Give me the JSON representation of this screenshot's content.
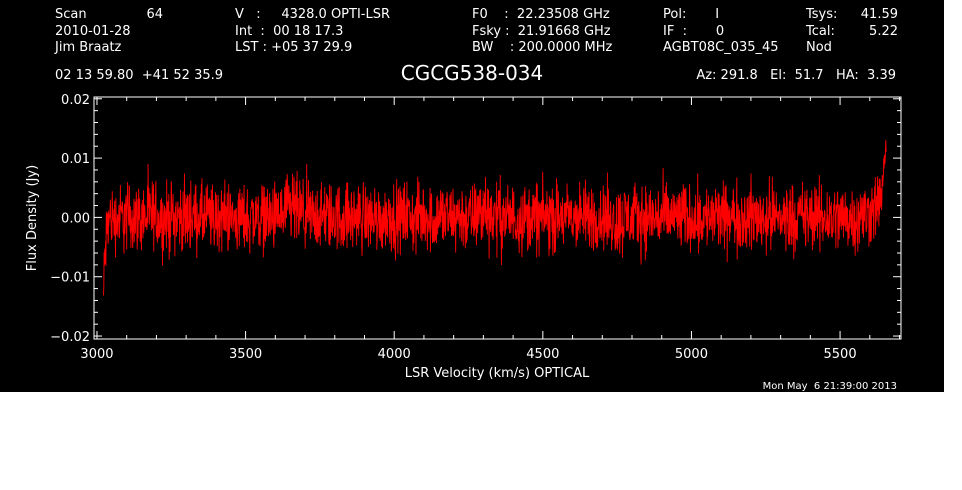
{
  "header": {
    "col1": [
      "Scan",
      "2010-01-28",
      "Jim Braatz"
    ],
    "scan_number": "64",
    "col2": [
      "V   :     4328.0 OPTI-LSR",
      "Int  :  00 18 17.3",
      "LST : +05 37 29.9"
    ],
    "col3": [
      "F0    :  22.23508 GHz",
      "Fsky :  21.91668 GHz",
      "BW    : 200.0000 MHz"
    ],
    "col4": [
      "Pol:       I",
      "IF  :       0",
      "AGBT08C_035_45"
    ],
    "col5": [
      "Tsys:",
      "Tcal:",
      "Nod"
    ],
    "col5_values": [
      "41.59",
      "5.22",
      ""
    ],
    "coords": "02 13 59.80  +41 52 35.9",
    "source": "CGCG538-034",
    "az_el_ha": "Az: 291.8   El:  51.7   HA:  3.39"
  },
  "timestamp": "Mon May  6 21:39:00 2013",
  "colors": {
    "background": "#000000",
    "axes": "#ffffff",
    "trace": "#ff0000"
  },
  "chart_data": {
    "type": "line",
    "xlabel": "LSR Velocity (km/s) OPTICAL",
    "ylabel": "Flux Density (Jy)",
    "xlim": [
      2990,
      5705
    ],
    "ylim": [
      -0.0205,
      0.0203
    ],
    "xticks": [
      3000,
      3500,
      4000,
      4500,
      5000,
      5500
    ],
    "xtick_labels": [
      "3000",
      "3500",
      "4000",
      "4500",
      "5000",
      "5500"
    ],
    "yticks": [
      -0.02,
      -0.01,
      0.0,
      0.01,
      0.02
    ],
    "ytick_labels": [
      "−0.02",
      "−0.01",
      "0.00",
      "0.01",
      "0.02"
    ],
    "grid": false,
    "series": [
      {
        "color": "#ff0000",
        "x": [
          3022,
          3025,
          3029,
          3034,
          3040,
          3046,
          3052,
          3058,
          3065,
          3075,
          3090,
          3110,
          3135,
          3160,
          3190,
          3220,
          3250,
          3280,
          3310,
          3340,
          3370,
          3400,
          3430,
          3460,
          3490,
          3520,
          3550,
          3580,
          3610,
          3640,
          3660,
          3680,
          3710,
          3740,
          3770,
          3800,
          3830,
          3860,
          3890,
          3920,
          3950,
          3980,
          4010,
          4040,
          4070,
          4100,
          4130,
          4160,
          4190,
          4220,
          4250,
          4280,
          4305,
          4330,
          4360,
          4390,
          4420,
          4450,
          4480,
          4510,
          4540,
          4570,
          4600,
          4630,
          4660,
          4690,
          4720,
          4750,
          4780,
          4810,
          4840,
          4870,
          4900,
          4930,
          4960,
          4990,
          5020,
          5050,
          5080,
          5110,
          5140,
          5170,
          5200,
          5230,
          5260,
          5290,
          5320,
          5350,
          5380,
          5410,
          5440,
          5470,
          5500,
          5530,
          5560,
          5590,
          5610,
          5625,
          5635,
          5642,
          5648,
          5652,
          5655
        ],
        "upper": [
          -0.008,
          0.001,
          0.004,
          0.007,
          0.008,
          0.008,
          0.008,
          0.007,
          0.008,
          0.008,
          0.009,
          0.009,
          0.008,
          0.009,
          0.009,
          0.008,
          0.009,
          0.008,
          0.009,
          0.008,
          0.009,
          0.008,
          0.009,
          0.008,
          0.008,
          0.009,
          0.008,
          0.009,
          0.008,
          0.01,
          0.012,
          0.009,
          0.009,
          0.008,
          0.009,
          0.008,
          0.009,
          0.008,
          0.009,
          0.008,
          0.008,
          0.009,
          0.008,
          0.009,
          0.008,
          0.009,
          0.008,
          0.009,
          0.008,
          0.009,
          0.008,
          0.009,
          0.012,
          0.009,
          0.009,
          0.008,
          0.009,
          0.008,
          0.009,
          0.008,
          0.009,
          0.008,
          0.009,
          0.008,
          0.009,
          0.008,
          0.009,
          0.008,
          0.009,
          0.008,
          0.009,
          0.008,
          0.009,
          0.008,
          0.009,
          0.008,
          0.009,
          0.008,
          0.009,
          0.008,
          0.009,
          0.008,
          0.009,
          0.008,
          0.009,
          0.008,
          0.009,
          0.008,
          0.009,
          0.008,
          0.009,
          0.008,
          0.009,
          0.008,
          0.009,
          0.009,
          0.01,
          0.01,
          0.011,
          0.012,
          0.013,
          0.016,
          0.019
        ],
        "lower": [
          -0.019,
          -0.018,
          -0.014,
          -0.011,
          -0.009,
          -0.008,
          -0.008,
          -0.008,
          -0.009,
          -0.008,
          -0.009,
          -0.009,
          -0.008,
          -0.009,
          -0.008,
          -0.009,
          -0.009,
          -0.008,
          -0.009,
          -0.008,
          -0.009,
          -0.009,
          -0.008,
          -0.009,
          -0.008,
          -0.009,
          -0.008,
          -0.009,
          -0.008,
          -0.009,
          -0.009,
          -0.008,
          -0.009,
          -0.008,
          -0.009,
          -0.008,
          -0.009,
          -0.008,
          -0.009,
          -0.008,
          -0.009,
          -0.008,
          -0.009,
          -0.008,
          -0.009,
          -0.008,
          -0.009,
          -0.008,
          -0.009,
          -0.008,
          -0.009,
          -0.008,
          -0.009,
          -0.008,
          -0.009,
          -0.008,
          -0.009,
          -0.008,
          -0.009,
          -0.008,
          -0.009,
          -0.008,
          -0.009,
          -0.008,
          -0.009,
          -0.008,
          -0.009,
          -0.01,
          -0.009,
          -0.008,
          -0.009,
          -0.008,
          -0.009,
          -0.008,
          -0.009,
          -0.008,
          -0.009,
          -0.008,
          -0.009,
          -0.008,
          -0.009,
          -0.008,
          -0.009,
          -0.008,
          -0.009,
          -0.008,
          -0.009,
          -0.008,
          -0.009,
          -0.008,
          -0.009,
          -0.008,
          -0.009,
          -0.008,
          -0.009,
          -0.008,
          -0.007,
          -0.006,
          -0.004,
          -0.002,
          0.0,
          0.003,
          0.008
        ]
      }
    ]
  }
}
